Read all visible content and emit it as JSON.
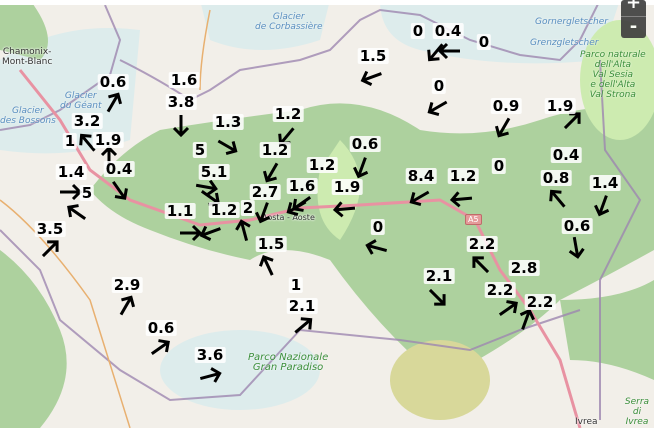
{
  "map": {
    "places": {
      "chamonix": "Chamonix-\nMont-Blanc",
      "corbassiere": "Glacier\nde Corbassière",
      "bossons": "Glacier\ndes Bossons",
      "geant": "Glacier\ndu Géant",
      "aosta": "Aosta - Aoste",
      "gorner": "Gornergletscher",
      "grenz": "Grenzgletscher",
      "sesia_park": "Parco naturale\ndell'Alta\nVal Sesia\ne dell'Alta\nVal Strona",
      "gran_paradiso": "Parco Nazionale\nGran Paradiso",
      "serra": "Serra di\nIvrea",
      "ivrea": "Ivrea",
      "a5": "A5"
    },
    "colors": {
      "land": "#f2efe9",
      "forest": "#add19e",
      "meadow": "#cdebb0",
      "glacier": "#ddecec",
      "border": "#9e87b0",
      "motorway": "#e892a2"
    },
    "zoom_in_label": "+",
    "zoom_out_label": "-"
  },
  "markers": [
    {
      "value": "0.6",
      "direction_deg": 30
    },
    {
      "value": "3.2",
      "direction_deg": -40
    },
    {
      "value": "1",
      "direction_deg": null
    },
    {
      "value": "1.9",
      "direction_deg": 0
    },
    {
      "value": "1.4",
      "direction_deg": 90
    },
    {
      "value": "0.4",
      "direction_deg": 145
    },
    {
      "value": "5",
      "direction_deg": -55
    },
    {
      "value": "3.5",
      "direction_deg": 45
    },
    {
      "value": "1.6",
      "direction_deg": null
    },
    {
      "value": "3.8",
      "direction_deg": 180
    },
    {
      "value": "1.3",
      "direction_deg": 120
    },
    {
      "value": "1.2",
      "direction_deg": 220
    },
    {
      "value": "1.2",
      "direction_deg": 210
    },
    {
      "value": "5",
      "direction_deg": 100
    },
    {
      "value": "5.1",
      "direction_deg": 125
    },
    {
      "value": "2.7",
      "direction_deg": 200
    },
    {
      "value": "1.2",
      "direction_deg": 235
    },
    {
      "value": "1.6",
      "direction_deg": 240
    },
    {
      "value": "1.1",
      "direction_deg": 90
    },
    {
      "value": "1.2",
      "direction_deg": 250
    },
    {
      "value": "2",
      "direction_deg": -15
    },
    {
      "value": "1.5",
      "direction_deg": -25
    },
    {
      "value": "1",
      "direction_deg": null
    },
    {
      "value": "2.1",
      "direction_deg": 50
    },
    {
      "value": "2.9",
      "direction_deg": 30
    },
    {
      "value": "0.6",
      "direction_deg": 55
    },
    {
      "value": "3.6",
      "direction_deg": 75
    },
    {
      "value": "1.5",
      "direction_deg": 250
    },
    {
      "value": "0.4",
      "direction_deg": 270
    },
    {
      "value": "0",
      "direction_deg": 220
    },
    {
      "value": "0",
      "direction_deg": null
    },
    {
      "value": "0",
      "direction_deg": 240
    },
    {
      "value": "0.9",
      "direction_deg": 210
    },
    {
      "value": "1.9",
      "direction_deg": 45
    },
    {
      "value": "0.6",
      "direction_deg": 200
    },
    {
      "value": "1.9",
      "direction_deg": 265
    },
    {
      "value": "8.4",
      "direction_deg": 240
    },
    {
      "value": "1.2",
      "direction_deg": 265
    },
    {
      "value": "0",
      "direction_deg": null
    },
    {
      "value": "0.4",
      "direction_deg": null
    },
    {
      "value": "0.8",
      "direction_deg": -40
    },
    {
      "value": "1.4",
      "direction_deg": 200
    },
    {
      "value": "0",
      "direction_deg": 285
    },
    {
      "value": "0.6",
      "direction_deg": 170
    },
    {
      "value": "2.2",
      "direction_deg": -45
    },
    {
      "value": "2.1",
      "direction_deg": 135
    },
    {
      "value": "2.2",
      "direction_deg": 55
    },
    {
      "value": "2.8",
      "direction_deg": null
    },
    {
      "value": "2.2",
      "direction_deg": 20
    }
  ]
}
